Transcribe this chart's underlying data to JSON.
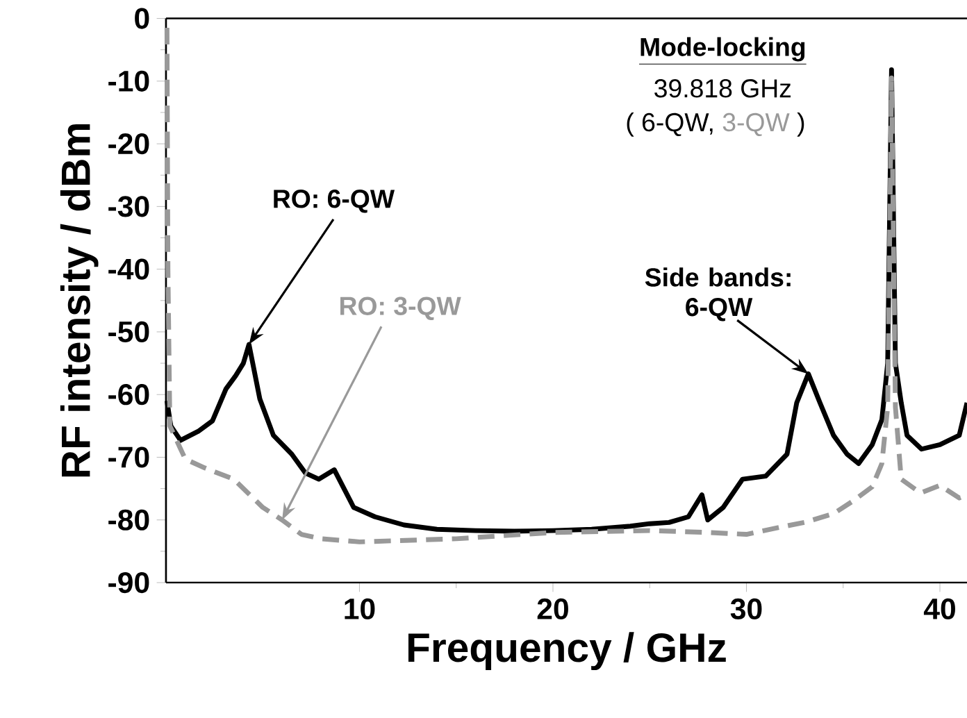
{
  "chart_data": {
    "type": "line",
    "xlabel": "Frequency / GHz",
    "ylabel": "RF intensity / dBm",
    "xlim": [
      0,
      41.4
    ],
    "ylim": [
      -90,
      0
    ],
    "xticks": [
      10,
      20,
      30,
      40
    ],
    "yticks": [
      0,
      -10,
      -20,
      -30,
      -40,
      -50,
      -60,
      -70,
      -80,
      -90
    ],
    "series": [
      {
        "color": "#000000",
        "line_style": "solid",
        "x": [
          0.05,
          0.25,
          0.75,
          1.7,
          2.4,
          3.1,
          3.6,
          4.0,
          4.29,
          4.85,
          5.55,
          6.5,
          7.2,
          7.9,
          8.7,
          9.2,
          9.7,
          10.8,
          12.3,
          14,
          16,
          18,
          20,
          22,
          24,
          25,
          26,
          27,
          27.7,
          28,
          28.8,
          29.8,
          31,
          32.1,
          32.6,
          33.2,
          33.8,
          34.5,
          35.2,
          35.8,
          36.5,
          37.0,
          37.3,
          37.5,
          37.7,
          38.0,
          38.3,
          39.05,
          40.0,
          41.0,
          41.4
        ],
        "values": [
          -61,
          -65,
          -67.3,
          -65.8,
          -64.2,
          -59.1,
          -57,
          -55,
          -52,
          -60.7,
          -66.5,
          -69.5,
          -72.5,
          -73.5,
          -72,
          -75,
          -78,
          -79.5,
          -80.8,
          -81.5,
          -81.7,
          -81.8,
          -81.7,
          -81.5,
          -81,
          -80.6,
          -80.4,
          -79.5,
          -76,
          -80,
          -78,
          -73.5,
          -73,
          -69.5,
          -61.3,
          -56.7,
          -61.3,
          -66.5,
          -69.5,
          -71,
          -68,
          -64,
          -55,
          -8.2,
          -55,
          -61.3,
          -66.5,
          -68.7,
          -68,
          -66.5,
          -61.3
        ]
      },
      {
        "color": "#999999",
        "line_style": "dashed",
        "x": [
          0.05,
          0.1,
          0.2,
          1,
          2,
          3.5,
          5,
          6,
          7,
          8,
          10,
          15,
          20,
          25,
          28,
          30,
          32,
          33,
          34.5,
          35.5,
          36.5,
          37,
          37.3,
          37.5,
          37.7,
          38,
          39,
          40,
          41,
          41.4
        ],
        "values": [
          -1.5,
          -40,
          -65,
          -70.3,
          -71.7,
          -73.5,
          -78,
          -80,
          -82.3,
          -83,
          -83.5,
          -83,
          -82,
          -81.7,
          -82,
          -82.3,
          -81,
          -80.4,
          -79,
          -77,
          -74.7,
          -71,
          -62,
          -9.5,
          -62,
          -73.5,
          -75.7,
          -74.5,
          -76.5,
          -76
        ]
      }
    ],
    "annotations": [
      {
        "text": "RO: 6-QW",
        "x": 4.29,
        "y": -52
      },
      {
        "text": "RO: 3-QW",
        "x": 6.0,
        "y": -80
      },
      {
        "text": "Side bands: 6-QW",
        "x": 33.2,
        "y": -56.7
      },
      "Mode-locking",
      "39.818 GHz",
      "( 6-QW,",
      "3-QW",
      ")"
    ]
  }
}
